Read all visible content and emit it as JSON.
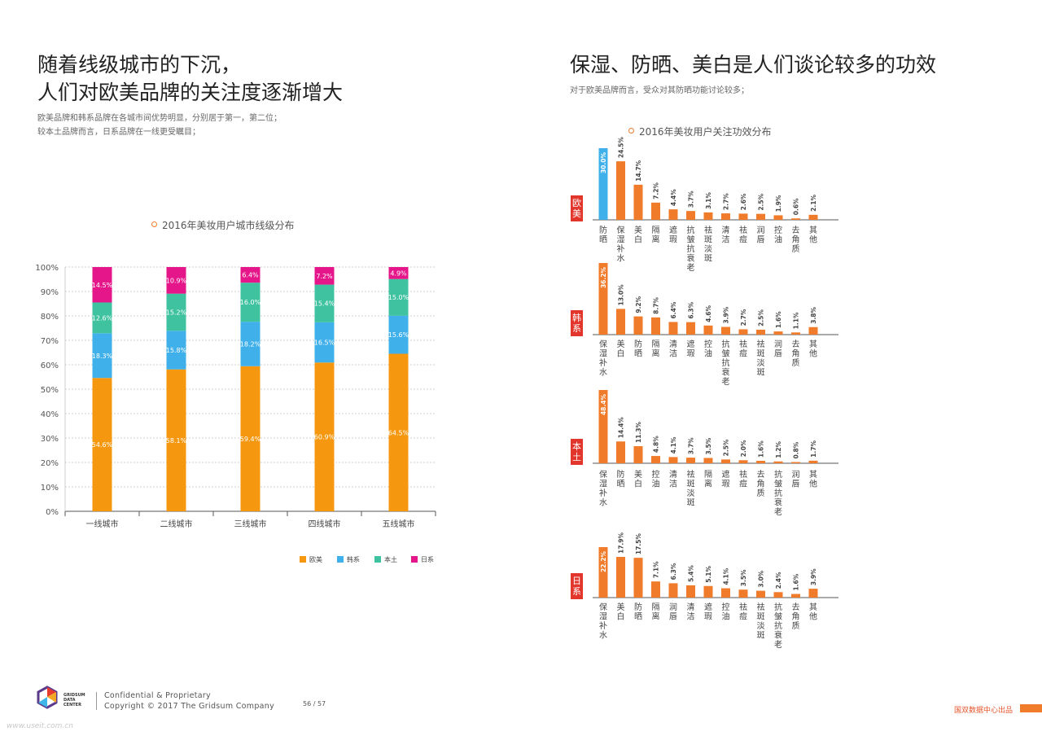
{
  "left": {
    "title_line1": "随着线级城市的下沉，",
    "title_line2": "人们对欧美品牌的关注度逐渐增大",
    "sub_line1": "欧美品牌和韩系品牌在各城市间优势明显，分别居于第一，第二位；",
    "sub_line2": "较本土品牌而言，日系品牌在一线更受瞩目；",
    "chart_title": "2016年美妆用户城市线级分布"
  },
  "right": {
    "title": "保湿、防晒、美白是人们谈论较多的功效",
    "sub": "对于欧美品牌而言，受众对其防晒功能讨论较多；",
    "chart_title": "2016年美妆用户关注功效分布"
  },
  "footer": {
    "logo_line1": "GRIDSUM",
    "logo_line2": "DATA",
    "logo_line3": "CENTER",
    "confidential": "Confidential & Proprietary",
    "copyright": "Copyright © 2017 The Gridsum Company",
    "page": "56 / 57",
    "brand": "国双数据中心出品",
    "watermark": "www.useit.com.cn"
  },
  "colors": {
    "europe": "#f5980f",
    "korea": "#40b0ea",
    "local": "#3fc2a0",
    "japan": "#e5168a",
    "orange_bar": "#f07b2a",
    "blue_bar": "#40b0ea",
    "tag_red": "#e2352b"
  },
  "chart_data": [
    {
      "type": "bar",
      "stacked": true,
      "title": "2016年美妆用户城市线级分布",
      "categories": [
        "一线城市",
        "二线城市",
        "三线城市",
        "四线城市",
        "五线城市"
      ],
      "series": [
        {
          "name": "欧美",
          "values": [
            54.6,
            58.1,
            59.4,
            60.9,
            64.5
          ],
          "labels": [
            "54.6%",
            "58.1%",
            "59.4%",
            "60.9%",
            "64.5%"
          ]
        },
        {
          "name": "韩系",
          "values": [
            18.3,
            15.8,
            18.2,
            16.5,
            15.6
          ],
          "labels": [
            "18.3%",
            "15.8%",
            "18.2%",
            "16.5%",
            "15.6%"
          ]
        },
        {
          "name": "本土",
          "values": [
            12.6,
            15.2,
            16.0,
            15.4,
            15.0
          ],
          "labels": [
            "12.6%",
            "15.2%",
            "16.0%",
            "15.4%",
            "15.0%"
          ]
        },
        {
          "name": "日系",
          "values": [
            14.5,
            10.9,
            6.4,
            7.2,
            4.9
          ],
          "labels": [
            "14.5%",
            "10.9%",
            "6.4%",
            "7.2%",
            "4.9%"
          ]
        }
      ],
      "yticks": [
        "0%",
        "10%",
        "20%",
        "30%",
        "40%",
        "50%",
        "60%",
        "70%",
        "80%",
        "90%",
        "100%"
      ],
      "ylim": [
        0,
        100
      ],
      "grid": true,
      "legend": "bottom-right"
    },
    {
      "type": "bar",
      "title": "2016年美妆用户关注功效分布",
      "panels": [
        {
          "name": "欧美",
          "categories": [
            "防晒",
            "保湿补水",
            "美白",
            "隔离",
            "遮瑕",
            "抗皱抗衰老",
            "祛斑淡斑",
            "清洁",
            "祛痘",
            "润唇",
            "控油",
            "去角质",
            "其他"
          ],
          "values": [
            30.0,
            24.5,
            14.7,
            7.2,
            4.4,
            3.7,
            3.1,
            2.7,
            2.6,
            2.5,
            1.9,
            0.6,
            2.1
          ],
          "labels": [
            "30.0%",
            "24.5%",
            "14.7%",
            "7.2%",
            "4.4%",
            "3.7%",
            "3.1%",
            "2.7%",
            "2.6%",
            "2.5%",
            "1.9%",
            "0.6%",
            "2.1%"
          ],
          "highlight_index": 0
        },
        {
          "name": "韩系",
          "categories": [
            "保湿补水",
            "美白",
            "防晒",
            "隔离",
            "清洁",
            "遮瑕",
            "控油",
            "抗皱抗衰老",
            "祛痘",
            "祛斑淡斑",
            "润唇",
            "去角质",
            "其他"
          ],
          "values": [
            36.2,
            13.0,
            9.2,
            8.7,
            6.4,
            6.3,
            4.6,
            3.9,
            2.7,
            2.5,
            1.6,
            1.1,
            3.8
          ],
          "labels": [
            "36.2%",
            "13.0%",
            "9.2%",
            "8.7%",
            "6.4%",
            "6.3%",
            "4.6%",
            "3.9%",
            "2.7%",
            "2.5%",
            "1.6%",
            "1.1%",
            "3.8%"
          ]
        },
        {
          "name": "本土",
          "categories": [
            "保湿补水",
            "防晒",
            "美白",
            "控油",
            "清洁",
            "祛斑淡斑",
            "隔离",
            "遮瑕",
            "祛痘",
            "去角质",
            "抗皱抗衰老",
            "润唇",
            "其他"
          ],
          "values": [
            48.4,
            14.4,
            11.3,
            4.8,
            4.1,
            3.7,
            3.5,
            2.5,
            2.0,
            1.6,
            1.2,
            0.8,
            1.7
          ],
          "labels": [
            "48.4%",
            "14.4%",
            "11.3%",
            "4.8%",
            "4.1%",
            "3.7%",
            "3.5%",
            "2.5%",
            "2.0%",
            "1.6%",
            "1.2%",
            "0.8%",
            "1.7%"
          ]
        },
        {
          "name": "日系",
          "categories": [
            "保湿补水",
            "美白",
            "防晒",
            "隔离",
            "润唇",
            "清洁",
            "遮瑕",
            "控油",
            "祛痘",
            "祛斑淡斑",
            "抗皱抗衰老",
            "去角质",
            "其他"
          ],
          "values": [
            22.2,
            17.9,
            17.5,
            7.1,
            6.3,
            5.4,
            5.1,
            4.1,
            3.5,
            3.0,
            2.4,
            1.6,
            3.9
          ],
          "labels": [
            "22.2%",
            "17.9%",
            "17.5%",
            "7.1%",
            "6.3%",
            "5.4%",
            "5.1%",
            "4.1%",
            "3.5%",
            "3.0%",
            "2.4%",
            "1.6%",
            "3.9%"
          ]
        }
      ]
    }
  ]
}
